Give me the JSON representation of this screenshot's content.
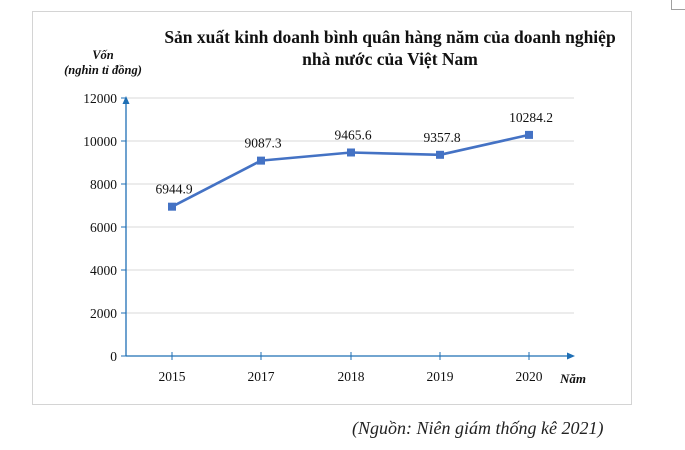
{
  "chart_data": {
    "type": "line",
    "title": "Sản xuất kinh doanh bình quân hàng năm của doanh nghiệp nhà nước của Việt Nam",
    "title_lines": [
      "Sản xuất kinh doanh bình quân hàng năm của doanh nghiệp",
      "nhà nước của Việt Nam"
    ],
    "xlabel": "Năm",
    "ylabel": "Vốn (nghìn tỉ đồng)",
    "ylabel_lines": [
      "Vốn",
      "(nghìn tỉ đồng)"
    ],
    "categories": [
      "2015",
      "2017",
      "2018",
      "2019",
      "2020"
    ],
    "series": [
      {
        "name": "Vốn",
        "values": [
          6944.9,
          9087.3,
          9465.6,
          9357.8,
          10284.2
        ],
        "color": "#4472C4"
      }
    ],
    "data_labels": [
      "6944.9",
      "9087.3",
      "9465.6",
      "9357.8",
      "10284.2"
    ],
    "yticks": [
      "0",
      "2000",
      "4000",
      "6000",
      "8000",
      "10000",
      "12000"
    ],
    "ylim": [
      0,
      12000
    ],
    "grid": true,
    "legend": "none",
    "axis_color": "#1F6FB5",
    "grid_color": "#D9D9D9"
  },
  "source_note": "(Nguồn: Niên giám thống kê 2021)"
}
